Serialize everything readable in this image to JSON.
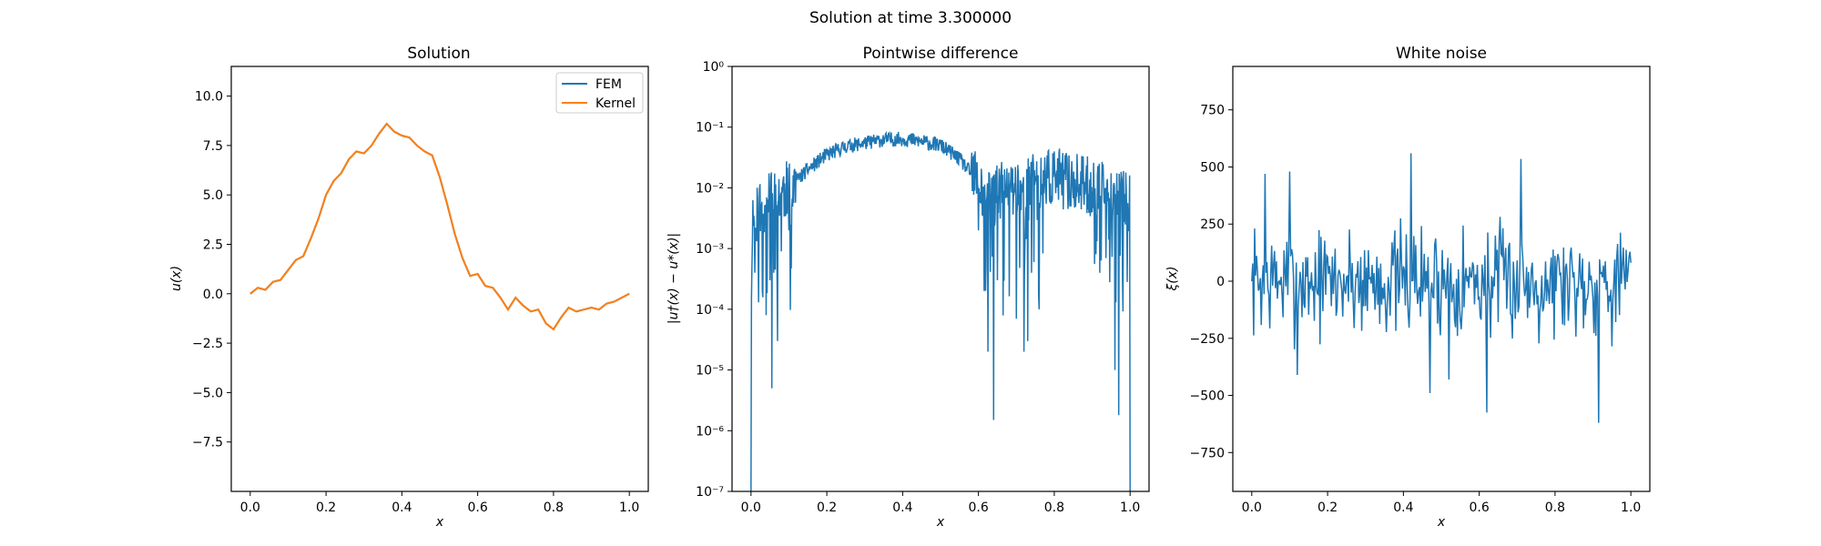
{
  "figure": {
    "suptitle": "Solution at time 3.300000"
  },
  "colors": {
    "fem": "#1f77b4",
    "kernel": "#ff7f0e",
    "axis": "#000000"
  },
  "chart_data": [
    {
      "type": "line",
      "title": "Solution",
      "xlabel": "x",
      "ylabel": "u(x)",
      "xlim": [
        -0.05,
        1.05
      ],
      "ylim": [
        -10,
        11.5
      ],
      "xticks": [
        "0.0",
        "0.2",
        "0.4",
        "0.6",
        "0.8",
        "1.0"
      ],
      "yticks": [
        "−7.5",
        "−5.0",
        "−2.5",
        "0.0",
        "2.5",
        "5.0",
        "7.5",
        "10.0"
      ],
      "legend": {
        "placement": "top-right",
        "entries": [
          "FEM",
          "Kernel"
        ]
      },
      "series": [
        {
          "name": "FEM",
          "x": [
            0,
            0.02,
            0.04,
            0.06,
            0.08,
            0.1,
            0.12,
            0.14,
            0.16,
            0.18,
            0.2,
            0.22,
            0.24,
            0.26,
            0.28,
            0.3,
            0.32,
            0.34,
            0.36,
            0.38,
            0.4,
            0.42,
            0.44,
            0.46,
            0.48,
            0.5,
            0.52,
            0.54,
            0.56,
            0.58,
            0.6,
            0.62,
            0.64,
            0.66,
            0.68,
            0.7,
            0.72,
            0.74,
            0.76,
            0.78,
            0.8,
            0.82,
            0.84,
            0.86,
            0.88,
            0.9,
            0.92,
            0.94,
            0.96,
            0.98,
            1.0
          ],
          "y": [
            0.0,
            0.3,
            0.2,
            0.6,
            0.7,
            1.2,
            1.7,
            1.9,
            2.8,
            3.8,
            5.0,
            5.7,
            6.1,
            6.8,
            7.2,
            7.1,
            7.5,
            8.1,
            8.6,
            8.2,
            8.0,
            7.9,
            7.5,
            7.2,
            7.0,
            5.9,
            4.5,
            3.0,
            1.8,
            0.9,
            1.0,
            0.4,
            0.3,
            -0.2,
            -0.8,
            -0.2,
            -0.6,
            -0.9,
            -0.8,
            -1.5,
            -1.8,
            -1.2,
            -0.7,
            -0.9,
            -0.8,
            -0.7,
            -0.8,
            -0.5,
            -0.4,
            -0.2,
            0.0
          ]
        },
        {
          "name": "Kernel",
          "x": [
            0,
            0.02,
            0.04,
            0.06,
            0.08,
            0.1,
            0.12,
            0.14,
            0.16,
            0.18,
            0.2,
            0.22,
            0.24,
            0.26,
            0.28,
            0.3,
            0.32,
            0.34,
            0.36,
            0.38,
            0.4,
            0.42,
            0.44,
            0.46,
            0.48,
            0.5,
            0.52,
            0.54,
            0.56,
            0.58,
            0.6,
            0.62,
            0.64,
            0.66,
            0.68,
            0.7,
            0.72,
            0.74,
            0.76,
            0.78,
            0.8,
            0.82,
            0.84,
            0.86,
            0.88,
            0.9,
            0.92,
            0.94,
            0.96,
            0.98,
            1.0
          ],
          "y": [
            0.0,
            0.3,
            0.2,
            0.6,
            0.7,
            1.2,
            1.7,
            1.9,
            2.8,
            3.8,
            5.0,
            5.7,
            6.1,
            6.8,
            7.2,
            7.1,
            7.5,
            8.1,
            8.6,
            8.2,
            8.0,
            7.9,
            7.5,
            7.2,
            7.0,
            5.9,
            4.5,
            3.0,
            1.8,
            0.9,
            1.0,
            0.4,
            0.3,
            -0.2,
            -0.8,
            -0.2,
            -0.6,
            -0.9,
            -0.8,
            -1.5,
            -1.8,
            -1.2,
            -0.7,
            -0.9,
            -0.8,
            -0.7,
            -0.8,
            -0.5,
            -0.4,
            -0.2,
            0.0
          ]
        }
      ]
    },
    {
      "type": "line",
      "title": "Pointwise difference",
      "xlabel": "x",
      "ylabel": "|u†(x) − u*(x)|",
      "yscale": "log",
      "xlim": [
        -0.05,
        1.05
      ],
      "ylim": [
        1e-07,
        1
      ],
      "xticks": [
        "0.0",
        "0.2",
        "0.4",
        "0.6",
        "0.8",
        "1.0"
      ],
      "yticks": [
        "10⁻⁷",
        "10⁻⁶",
        "10⁻⁵",
        "10⁻⁴",
        "10⁻³",
        "10⁻²",
        "10⁻¹",
        "10⁰"
      ],
      "envelope": {
        "x": [
          0,
          0.02,
          0.05,
          0.1,
          0.15,
          0.2,
          0.25,
          0.3,
          0.35,
          0.4,
          0.45,
          0.5,
          0.55,
          0.6,
          0.62,
          0.65,
          0.7,
          0.75,
          0.8,
          0.85,
          0.9,
          0.95,
          1.0
        ],
        "y": [
          0.003,
          0.004,
          0.006,
          0.01,
          0.02,
          0.035,
          0.048,
          0.055,
          0.062,
          0.064,
          0.058,
          0.05,
          0.03,
          0.012,
          0.006,
          0.008,
          0.01,
          0.012,
          0.015,
          0.012,
          0.01,
          0.008,
          0.006
        ]
      },
      "dips": [
        {
          "x": 0.0,
          "y": 1e-07
        },
        {
          "x": 0.01,
          "y": 0.0004
        },
        {
          "x": 0.02,
          "y": 0.00013
        },
        {
          "x": 0.03,
          "y": 0.0002
        },
        {
          "x": 0.04,
          "y": 8e-05
        },
        {
          "x": 0.05,
          "y": 0.0003
        },
        {
          "x": 0.055,
          "y": 5e-06
        },
        {
          "x": 0.06,
          "y": 0.0004
        },
        {
          "x": 0.07,
          "y": 3e-05
        },
        {
          "x": 0.08,
          "y": 0.0009
        },
        {
          "x": 0.1,
          "y": 0.002
        },
        {
          "x": 0.6,
          "y": 0.002
        },
        {
          "x": 0.615,
          "y": 0.0002
        },
        {
          "x": 0.625,
          "y": 2e-05
        },
        {
          "x": 0.64,
          "y": 1.5e-06
        },
        {
          "x": 0.65,
          "y": 0.0003
        },
        {
          "x": 0.7,
          "y": 7e-05
        },
        {
          "x": 0.72,
          "y": 2e-05
        },
        {
          "x": 0.73,
          "y": 3e-05
        },
        {
          "x": 0.74,
          "y": 0.0004
        },
        {
          "x": 0.76,
          "y": 0.0001
        },
        {
          "x": 0.92,
          "y": 0.0004
        },
        {
          "x": 0.96,
          "y": 1e-05
        },
        {
          "x": 0.97,
          "y": 1.8e-06
        },
        {
          "x": 0.98,
          "y": 0.0003
        },
        {
          "x": 1.0,
          "y": 1e-07
        }
      ]
    },
    {
      "type": "line",
      "title": "White noise",
      "xlabel": "x",
      "ylabel": "ξ(x)",
      "xlim": [
        -0.05,
        1.05
      ],
      "ylim": [
        -920,
        940
      ],
      "xticks": [
        "0.0",
        "0.2",
        "0.4",
        "0.6",
        "0.8",
        "1.0"
      ],
      "yticks": [
        "−750",
        "−500",
        "−250",
        "0",
        "250",
        "500",
        "750"
      ],
      "amplitude": 350,
      "peaks": [
        {
          "x": 0.42,
          "y": 560
        },
        {
          "x": 0.71,
          "y": 535
        },
        {
          "x": 0.035,
          "y": 470
        },
        {
          "x": 0.1,
          "y": 480
        },
        {
          "x": 0.915,
          "y": -620
        },
        {
          "x": 0.62,
          "y": -575
        },
        {
          "x": 0.47,
          "y": -490
        },
        {
          "x": 0.52,
          "y": -430
        },
        {
          "x": 0.12,
          "y": -410
        }
      ]
    }
  ]
}
